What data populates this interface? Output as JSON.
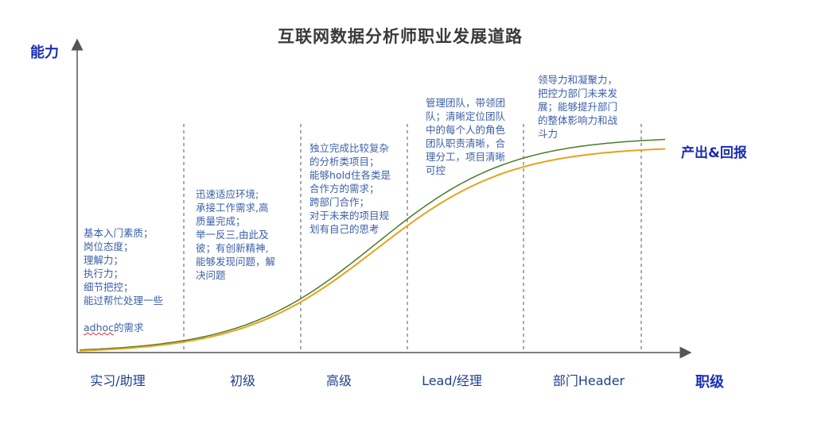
{
  "title": "互联网数据分析师职业发展道路",
  "y_axis_label": "能力",
  "x_axis_label": "职级",
  "curve_label": "产出&回报",
  "colors": {
    "axis": "#555555",
    "curve_green": "#4a7a2a",
    "curve_orange": "#e8a21a",
    "text_blue": "#3b5fa8",
    "label_blue": "#1a2fb0"
  },
  "stages": [
    {
      "label": "实习/助理",
      "description_lines": [
        "基本入门素质；",
        "岗位态度；",
        "理解力；",
        "执行力；",
        "细节把控；",
        "能过帮忙处理一些"
      ],
      "description_tail_word": "adhoc",
      "description_tail_rest": "的需求"
    },
    {
      "label": "初级",
      "description_lines": [
        "迅速适应环境;",
        "承接工作需求,高",
        "质量完成；",
        "举一反三,由此及",
        "彼；有创新精神,",
        "能够发现问题，解",
        "决问题"
      ]
    },
    {
      "label": "高级",
      "description_lines": [
        "独立完成比较复杂",
        "的分析类项目；",
        "能够hold住各类是",
        "合作方的需求；",
        "跨部门合作；",
        "对于未来的项目规",
        "划有自己的思考"
      ]
    },
    {
      "label": "Lead/经理",
      "description_lines": [
        "管理团队，带领团",
        "队；清晰定位团队",
        "中的每个人的角色",
        "团队职责清晰，合",
        "理分工，项目清晰",
        "可控"
      ]
    },
    {
      "label": "部门Header",
      "description_lines": [
        "领导力和凝聚力，",
        "把控力部门未来发",
        "展；能够提升部门",
        "的整体影响力和战",
        "斗力"
      ]
    }
  ]
}
